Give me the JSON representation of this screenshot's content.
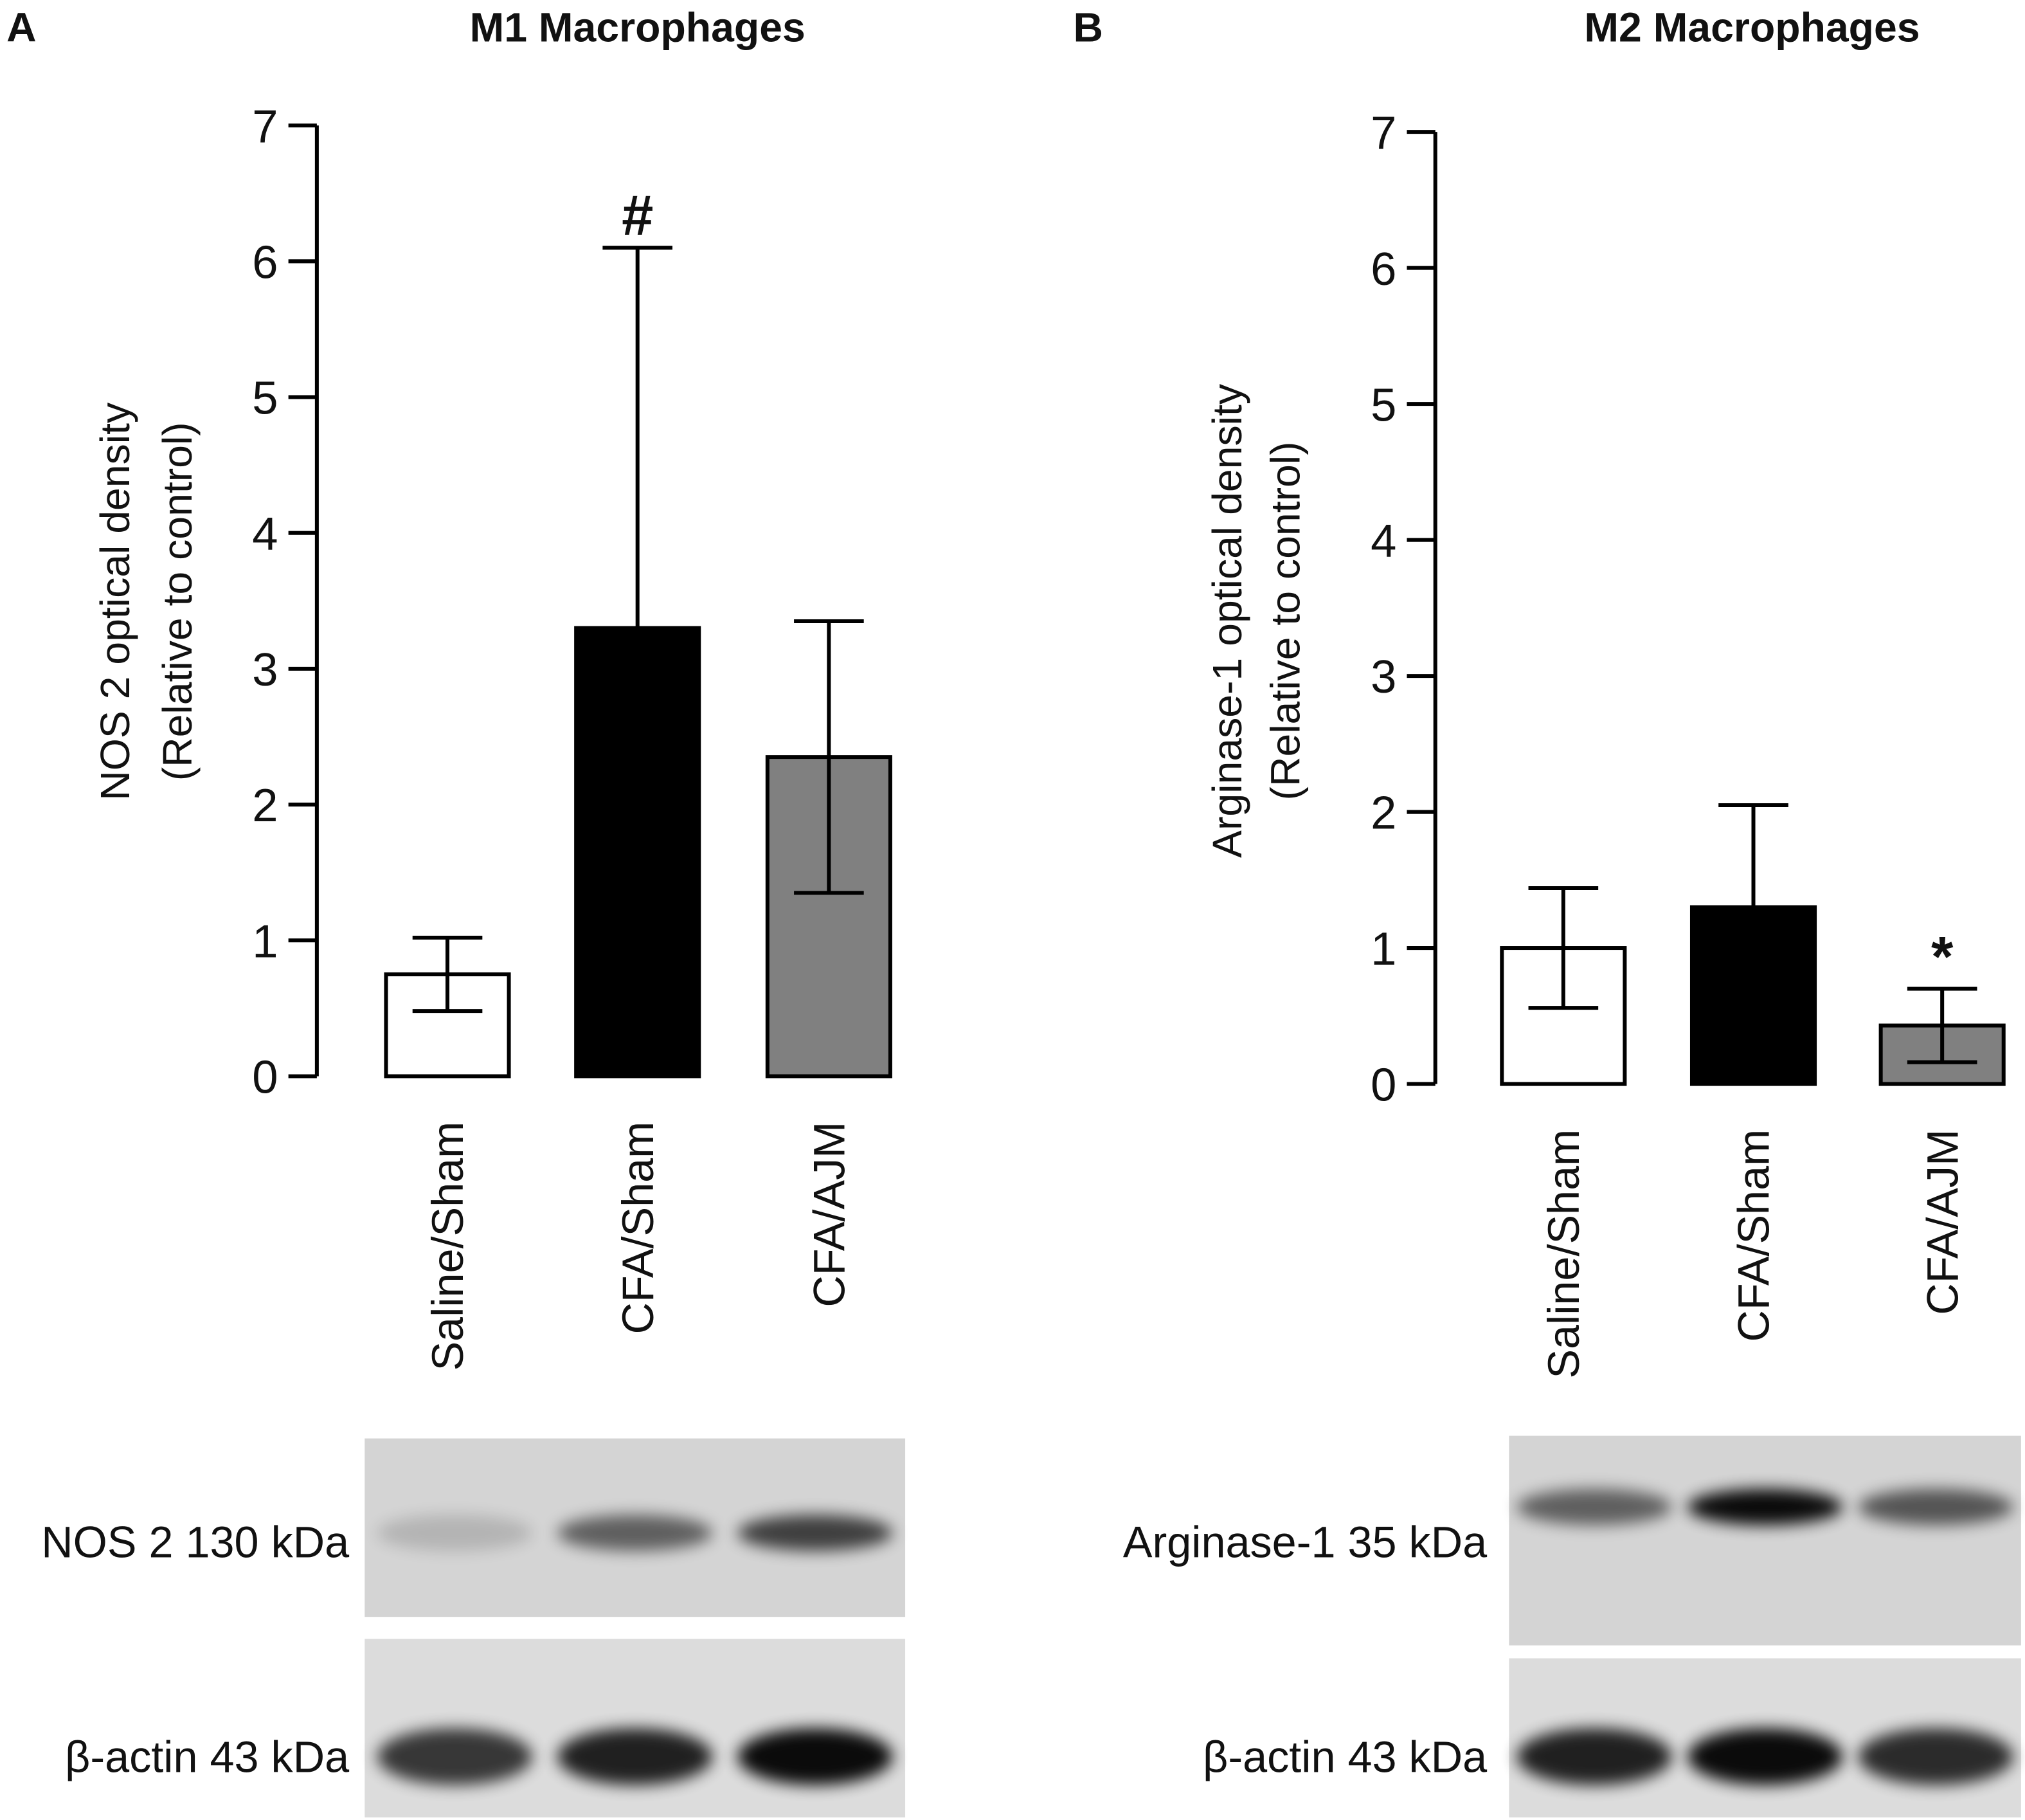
{
  "chart_data": [
    {
      "type": "bar",
      "panel": "A",
      "title": "M1 Macrophages",
      "ylabel": [
        "NOS 2 optical density",
        "(Relative to control)"
      ],
      "categories": [
        "Saline/Sham",
        "CFA/Sham",
        "CFA/AJM"
      ],
      "values": [
        0.75,
        3.3,
        2.35
      ],
      "errors": [
        0.27,
        2.8,
        1.0
      ],
      "colors": [
        "#ffffff",
        "#000000",
        "#808080"
      ],
      "value_annotations": [
        null,
        "#",
        null
      ],
      "ylim": [
        0,
        7
      ],
      "yticks": [
        0,
        1,
        2,
        3,
        4,
        5,
        6,
        7
      ],
      "blot_labels": [
        "NOS 2 130 kDa",
        "β-actin 43 kDa"
      ]
    },
    {
      "type": "bar",
      "panel": "B",
      "title": "M2 Macrophages",
      "ylabel": [
        "Arginase-1 optical density",
        "(Relative to control)"
      ],
      "categories": [
        "Saline/Sham",
        "CFA/Sham",
        "CFA/AJM"
      ],
      "values": [
        1.0,
        1.3,
        0.43
      ],
      "errors": [
        0.44,
        0.75,
        0.27
      ],
      "colors": [
        "#ffffff",
        "#000000",
        "#808080"
      ],
      "value_annotations": [
        null,
        null,
        "*"
      ],
      "ylim": [
        0,
        7
      ],
      "yticks": [
        0,
        1,
        2,
        3,
        4,
        5,
        6,
        7
      ],
      "blot_labels": [
        "Arginase-1 35 kDa",
        "β-actin 43 kDa"
      ]
    }
  ]
}
